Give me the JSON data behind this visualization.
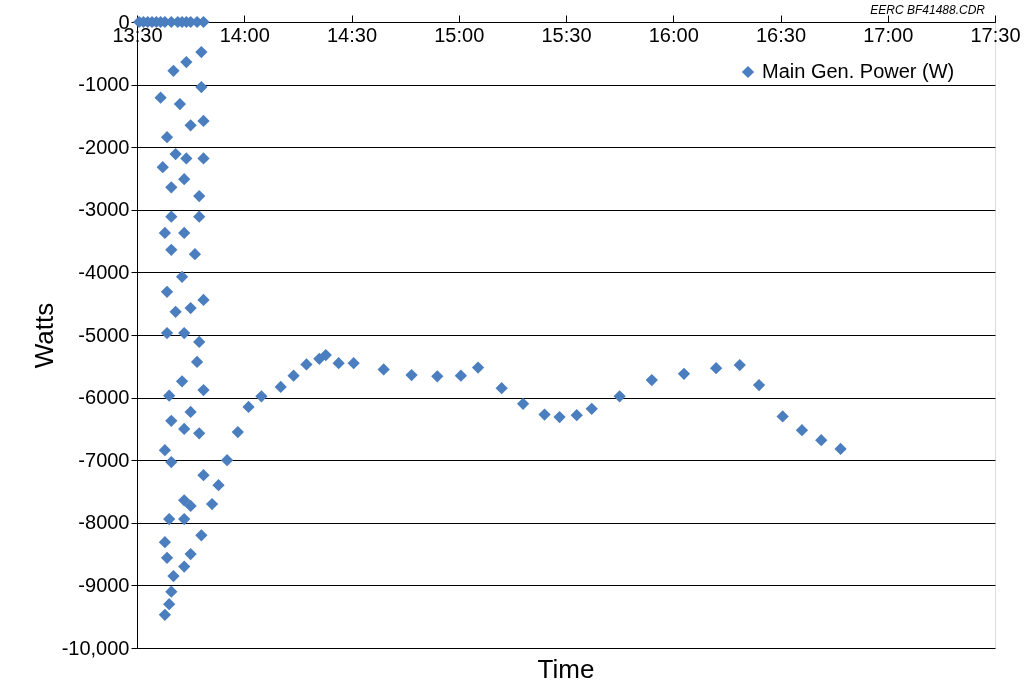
{
  "chart_data": {
    "type": "scatter",
    "xlabel": "Time",
    "ylabel": "Watts",
    "annotations": [
      "EERC BF41488.CDR"
    ],
    "xlim": [
      13.5,
      17.5
    ],
    "xticks": [
      {
        "value": 13.5,
        "label": "13:30"
      },
      {
        "value": 14,
        "label": "14:00"
      },
      {
        "value": 14.5,
        "label": "14:30"
      },
      {
        "value": 15,
        "label": "15:00"
      },
      {
        "value": 15.5,
        "label": "15:30"
      },
      {
        "value": 16,
        "label": "16:00"
      },
      {
        "value": 16.5,
        "label": "16:30"
      },
      {
        "value": 17,
        "label": "17:00"
      },
      {
        "value": 17.5,
        "label": "17:30"
      }
    ],
    "ylim": [
      -10000,
      0
    ],
    "yticks": [
      0,
      -1000,
      -2000,
      -3000,
      -4000,
      -5000,
      -6000,
      -7000,
      -8000,
      -9000,
      {
        "value": -10000,
        "label": "-10,000"
      }
    ],
    "grid": "y",
    "legend": "top right",
    "marker": "diamond",
    "series": [
      {
        "name": "Main Gen. Power (W)",
        "color": "#4a7ebf",
        "x": [
          13.51,
          13.53,
          13.55,
          13.57,
          13.59,
          13.61,
          13.63,
          13.66,
          13.69,
          13.71,
          13.73,
          13.75,
          13.78,
          13.81,
          13.8,
          13.67,
          13.73,
          13.61,
          13.8,
          13.7,
          13.64,
          13.75,
          13.81,
          13.68,
          13.62,
          13.73,
          13.81,
          13.66,
          13.72,
          13.79,
          13.66,
          13.79,
          13.63,
          13.72,
          13.66,
          13.77,
          13.71,
          13.64,
          13.81,
          13.68,
          13.75,
          13.64,
          13.72,
          13.79,
          13.78,
          13.71,
          13.81,
          13.65,
          13.75,
          13.66,
          13.79,
          13.63,
          13.72,
          13.66,
          13.81,
          13.72,
          13.75,
          13.65,
          13.72,
          13.63,
          13.64,
          13.66,
          13.65,
          13.63,
          13.67,
          13.72,
          13.75,
          13.8,
          13.85,
          13.88,
          13.92,
          13.97,
          14.02,
          14.08,
          14.17,
          14.23,
          14.29,
          14.35,
          14.38,
          14.44,
          14.51,
          14.65,
          14.78,
          14.9,
          15.01,
          15.09,
          15.2,
          15.3,
          15.4,
          15.47,
          15.55,
          15.62,
          15.75,
          15.9,
          16.05,
          16.2,
          16.31,
          16.4,
          16.51,
          16.6,
          16.69,
          16.78
        ],
        "values": [
          0,
          0,
          0,
          0,
          0,
          0,
          0,
          0,
          0,
          0,
          0,
          0,
          0,
          0,
          -480,
          -780,
          -640,
          -1210,
          -1040,
          -1310,
          -1840,
          -1650,
          -1580,
          -2110,
          -2320,
          -2180,
          -2180,
          -2640,
          -2510,
          -2780,
          -3110,
          -3110,
          -3370,
          -3370,
          -3640,
          -3710,
          -4070,
          -4310,
          -4440,
          -4630,
          -4570,
          -4970,
          -4970,
          -5110,
          -5430,
          -5740,
          -5880,
          -5970,
          -6230,
          -6370,
          -6570,
          -6840,
          -6500,
          -7030,
          -7240,
          -7640,
          -7730,
          -7940,
          -7940,
          -8310,
          -8560,
          -9100,
          -9300,
          -9470,
          -8850,
          -8700,
          -8500,
          -8200,
          -7700,
          -7400,
          -7000,
          -6550,
          -6150,
          -5980,
          -5830,
          -5650,
          -5470,
          -5380,
          -5320,
          -5450,
          -5450,
          -5550,
          -5640,
          -5660,
          -5650,
          -5520,
          -5850,
          -6100,
          -6270,
          -6310,
          -6280,
          -6180,
          -5980,
          -5720,
          -5620,
          -5530,
          -5480,
          -5800,
          -6300,
          -6520,
          -6680,
          -6820
        ]
      }
    ]
  }
}
